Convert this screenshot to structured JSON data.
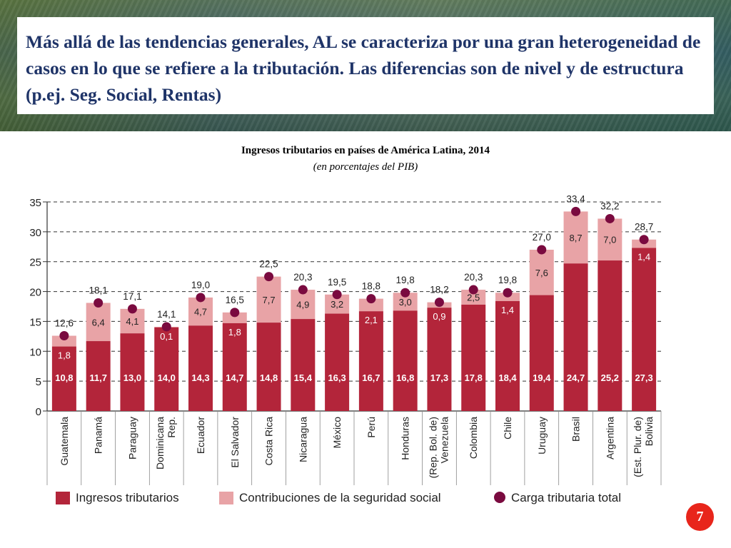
{
  "header": {
    "title": "Más allá de las tendencias generales, AL se caracteriza por una gran heterogeneidad de casos en lo que se refiere a la tributación. Las diferencias son de nivel y de estructura (p.ej. Seg. Social, Rentas)"
  },
  "colors": {
    "tax": "#b3253a",
    "social": "#e8a3a6",
    "total": "#7a0a3f",
    "accent": "#e8251b",
    "title": "#1f3468"
  },
  "legend": {
    "tax": "Ingresos tributarios",
    "social": "Contribuciones de la seguridad social",
    "total": "Carga tributaria total"
  },
  "chart_data": {
    "type": "bar",
    "title": "Ingresos tributarios en países de América Latina, 2014",
    "subtitle": "(en porcentajes del PIB)",
    "xlabel": "",
    "ylabel": "",
    "ylim": [
      0,
      35
    ],
    "yticks": [
      0,
      5,
      10,
      15,
      20,
      25,
      30,
      35
    ],
    "categories": [
      [
        "Guatemala"
      ],
      [
        "Panamá"
      ],
      [
        "Paraguay"
      ],
      [
        "Rep.",
        "Dominicana"
      ],
      [
        "Ecuador"
      ],
      [
        "El Salvador"
      ],
      [
        "Costa Rica"
      ],
      [
        "Nicaragua"
      ],
      [
        "México"
      ],
      [
        "Perú"
      ],
      [
        "Honduras"
      ],
      [
        "Venezuela",
        "(Rep. Bol. de)"
      ],
      [
        "Colombia"
      ],
      [
        "Chile"
      ],
      [
        "Uruguay"
      ],
      [
        "Brasil"
      ],
      [
        "Argentina"
      ],
      [
        "Bolivia",
        "(Est. Plur. de)"
      ]
    ],
    "series": [
      {
        "name": "Ingresos tributarios",
        "values": [
          10.8,
          11.7,
          13.0,
          14.0,
          14.3,
          14.7,
          14.8,
          15.4,
          16.3,
          16.7,
          16.8,
          17.3,
          17.8,
          18.4,
          19.4,
          24.7,
          25.2,
          27.3
        ],
        "labels": [
          "10,8",
          "11,7",
          "13,0",
          "14,0",
          "14,3",
          "14,7",
          "14,8",
          "15,4",
          "16,3",
          "16,7",
          "16,8",
          "17,3",
          "17,8",
          "18,4",
          "19,4",
          "24,7",
          "25,2",
          "27,3"
        ]
      },
      {
        "name": "Contribuciones de la seguridad social",
        "values": [
          1.8,
          6.4,
          4.1,
          0.1,
          4.7,
          1.8,
          7.7,
          4.9,
          3.2,
          2.1,
          3.0,
          0.9,
          2.5,
          1.4,
          7.6,
          8.7,
          7.0,
          1.4
        ],
        "labels": [
          "1,8",
          "6,4",
          "4,1",
          "0,1",
          "4,7",
          "1,8",
          "7,7",
          "4,9",
          "3,2",
          "2,1",
          "3,0",
          "0,9",
          "2,5",
          "1,4",
          "7,6",
          "8,7",
          "7,0",
          "1,4"
        ]
      },
      {
        "name": "Carga tributaria total",
        "values": [
          12.6,
          18.1,
          17.1,
          14.1,
          19.0,
          16.5,
          22.5,
          20.3,
          19.5,
          18.8,
          19.8,
          18.2,
          20.3,
          19.8,
          27.0,
          33.4,
          32.2,
          28.7
        ],
        "labels": [
          "12,6",
          "18,1",
          "17,1",
          "14,1",
          "19,0",
          "16,5",
          "22,5",
          "20,3",
          "19,5",
          "18,8",
          "19,8",
          "18,2",
          "20,3",
          "19,8",
          "27,0",
          "33,4",
          "32,2",
          "28,7"
        ]
      }
    ],
    "grid": true,
    "legend_position": "bottom"
  },
  "footer": {
    "page_number": "7"
  }
}
